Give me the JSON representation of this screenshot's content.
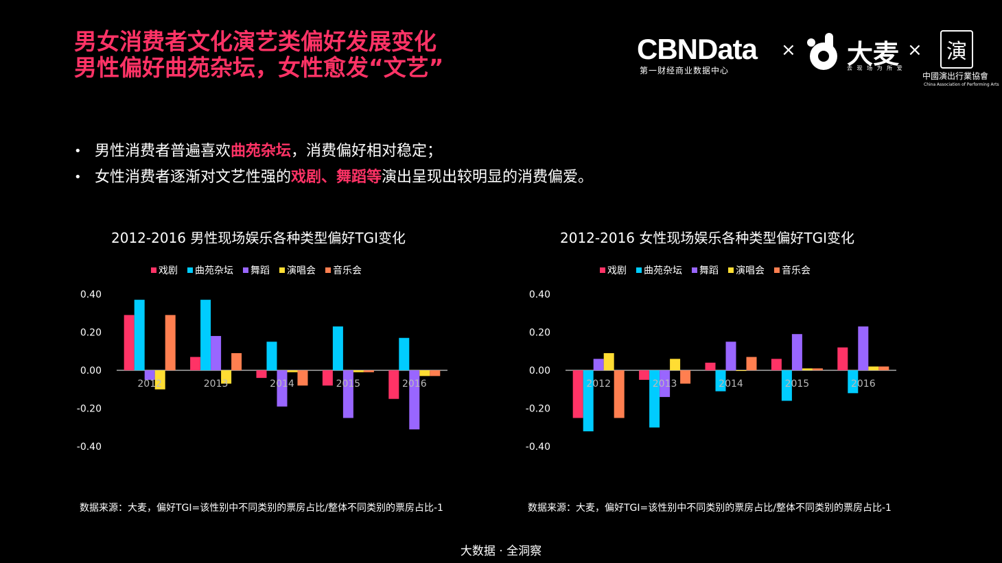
{
  "header": {
    "title_line1": "男女消费者文化演艺类偏好发展变化",
    "title_line2": "男性偏好曲苑杂坛，女性愈发“文艺”"
  },
  "logos": {
    "cbn": "CBNData",
    "cbn_sub": "第一财经商业数据中心",
    "times": "×",
    "damai": "大麦",
    "damai_sub": "去 现 场  为 所 爱",
    "caa_seal": "演",
    "caa_name": "中國演出行業協會",
    "caa_en": "China Association of Performing Arts"
  },
  "bullets": [
    {
      "bullet": "•",
      "pre": "男性消费者普遍喜欢",
      "hl": "曲苑杂坛",
      "post": "，消费偏好相对稳定；"
    },
    {
      "bullet": "•",
      "pre": "女性消费者逐渐对文艺性强的",
      "hl": "戏剧、舞蹈等",
      "post": "演出呈现出较明显的消费偏爱。"
    }
  ],
  "colors": {
    "戏剧": "#ff3366",
    "曲苑杂坛": "#00ccff",
    "舞蹈": "#9966ff",
    "演唱会": "#ffdd33",
    "音乐会": "#ff7f50",
    "title": "#ff3366"
  },
  "chart_data": [
    {
      "type": "bar",
      "title": "2012-2016 男性现场娱乐各种类型偏好TGI变化",
      "categories": [
        "2012",
        "2013",
        "2014",
        "2015",
        "2016"
      ],
      "yticks": [
        "0.40",
        "0.20",
        "0.00",
        "-0.20",
        "-0.40"
      ],
      "ylim": [
        -0.4,
        0.4
      ],
      "legend_position": "top",
      "grid": false,
      "series": [
        {
          "name": "戏剧",
          "values": [
            0.29,
            0.07,
            -0.04,
            -0.08,
            -0.15
          ]
        },
        {
          "name": "曲苑杂坛",
          "values": [
            0.37,
            0.37,
            0.15,
            0.23,
            0.17
          ]
        },
        {
          "name": "舞蹈",
          "values": [
            -0.05,
            0.18,
            -0.19,
            -0.25,
            -0.31
          ]
        },
        {
          "name": "演唱会",
          "values": [
            -0.1,
            -0.07,
            -0.01,
            -0.01,
            -0.03
          ]
        },
        {
          "name": "音乐会",
          "values": [
            0.29,
            0.09,
            -0.08,
            -0.01,
            -0.03
          ]
        }
      ],
      "source": "数据来源：大麦，偏好TGI=该性别中不同类别的票房占比/整体不同类别的票房占比-1"
    },
    {
      "type": "bar",
      "title": "2012-2016 女性现场娱乐各种类型偏好TGI变化",
      "categories": [
        "2012",
        "2013",
        "2014",
        "2015",
        "2016"
      ],
      "yticks": [
        "0.40",
        "0.20",
        "0.00",
        "-0.20",
        "-0.40"
      ],
      "ylim": [
        -0.4,
        0.4
      ],
      "legend_position": "top",
      "grid": false,
      "series": [
        {
          "name": "戏剧",
          "values": [
            -0.25,
            -0.05,
            0.04,
            0.06,
            0.12
          ]
        },
        {
          "name": "曲苑杂坛",
          "values": [
            -0.32,
            -0.3,
            -0.11,
            -0.16,
            -0.12
          ]
        },
        {
          "name": "舞蹈",
          "values": [
            0.06,
            -0.14,
            0.15,
            0.19,
            0.23
          ]
        },
        {
          "name": "演唱会",
          "values": [
            0.09,
            0.06,
            0.0,
            0.01,
            0.02
          ]
        },
        {
          "name": "音乐会",
          "values": [
            -0.25,
            -0.07,
            0.07,
            0.01,
            0.02
          ]
        }
      ],
      "source": "数据来源：大麦，偏好TGI=该性别中不同类别的票房占比/整体不同类别的票房占比-1"
    }
  ],
  "footer": "大数据 · 全洞察"
}
